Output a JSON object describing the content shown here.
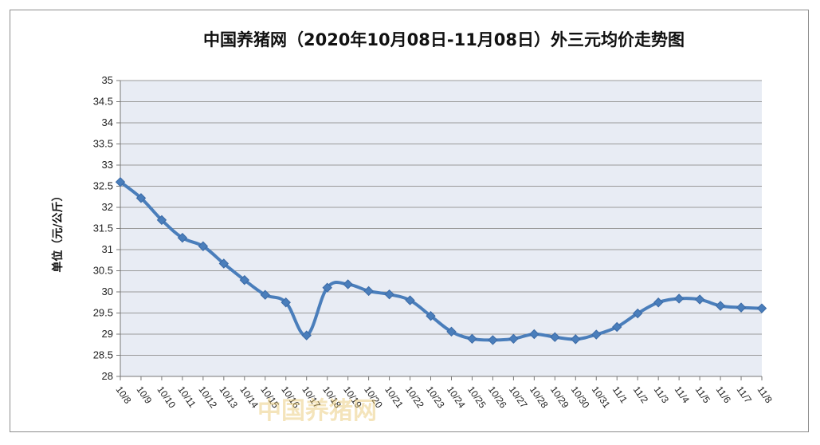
{
  "chart_data": {
    "type": "line",
    "title": "中国养猪网（2020年10月08日-11月08日）外三元均价走势图",
    "ylabel": "单位（元/公斤）",
    "xlabel": "",
    "ylim": [
      28,
      35
    ],
    "ytick_step": 0.5,
    "yticks": [
      "28",
      "28.5",
      "29",
      "29.5",
      "30",
      "30.5",
      "31",
      "31.5",
      "32",
      "32.5",
      "33",
      "33.5",
      "34",
      "34.5",
      "35"
    ],
    "grid": true,
    "legend": "none",
    "line_color": "#4a7ebb",
    "plot_bg": "#e8ecf4",
    "categories": [
      "10/8",
      "10/9",
      "10/10",
      "10/11",
      "10/12",
      "10/13",
      "10/14",
      "10/15",
      "10/16",
      "10/17",
      "10/18",
      "10/19",
      "10/20",
      "10/21",
      "10/22",
      "10/23",
      "10/24",
      "10/25",
      "10/26",
      "10/27",
      "10/28",
      "10/29",
      "10/30",
      "10/31",
      "11/1",
      "11/2",
      "11/3",
      "11/4",
      "11/5",
      "11/6",
      "11/7",
      "11/8"
    ],
    "series": [
      {
        "values": [
          32.6,
          32.22,
          31.7,
          31.28,
          31.08,
          30.67,
          30.28,
          29.93,
          29.75,
          28.97,
          30.1,
          30.18,
          30.02,
          29.94,
          29.8,
          29.43,
          29.06,
          28.89,
          28.86,
          28.89,
          29.0,
          28.93,
          28.88,
          28.99,
          29.17,
          29.49,
          29.75,
          29.84,
          29.82,
          29.67,
          29.63,
          29.61
        ]
      }
    ]
  },
  "watermark": "中国养猪网"
}
